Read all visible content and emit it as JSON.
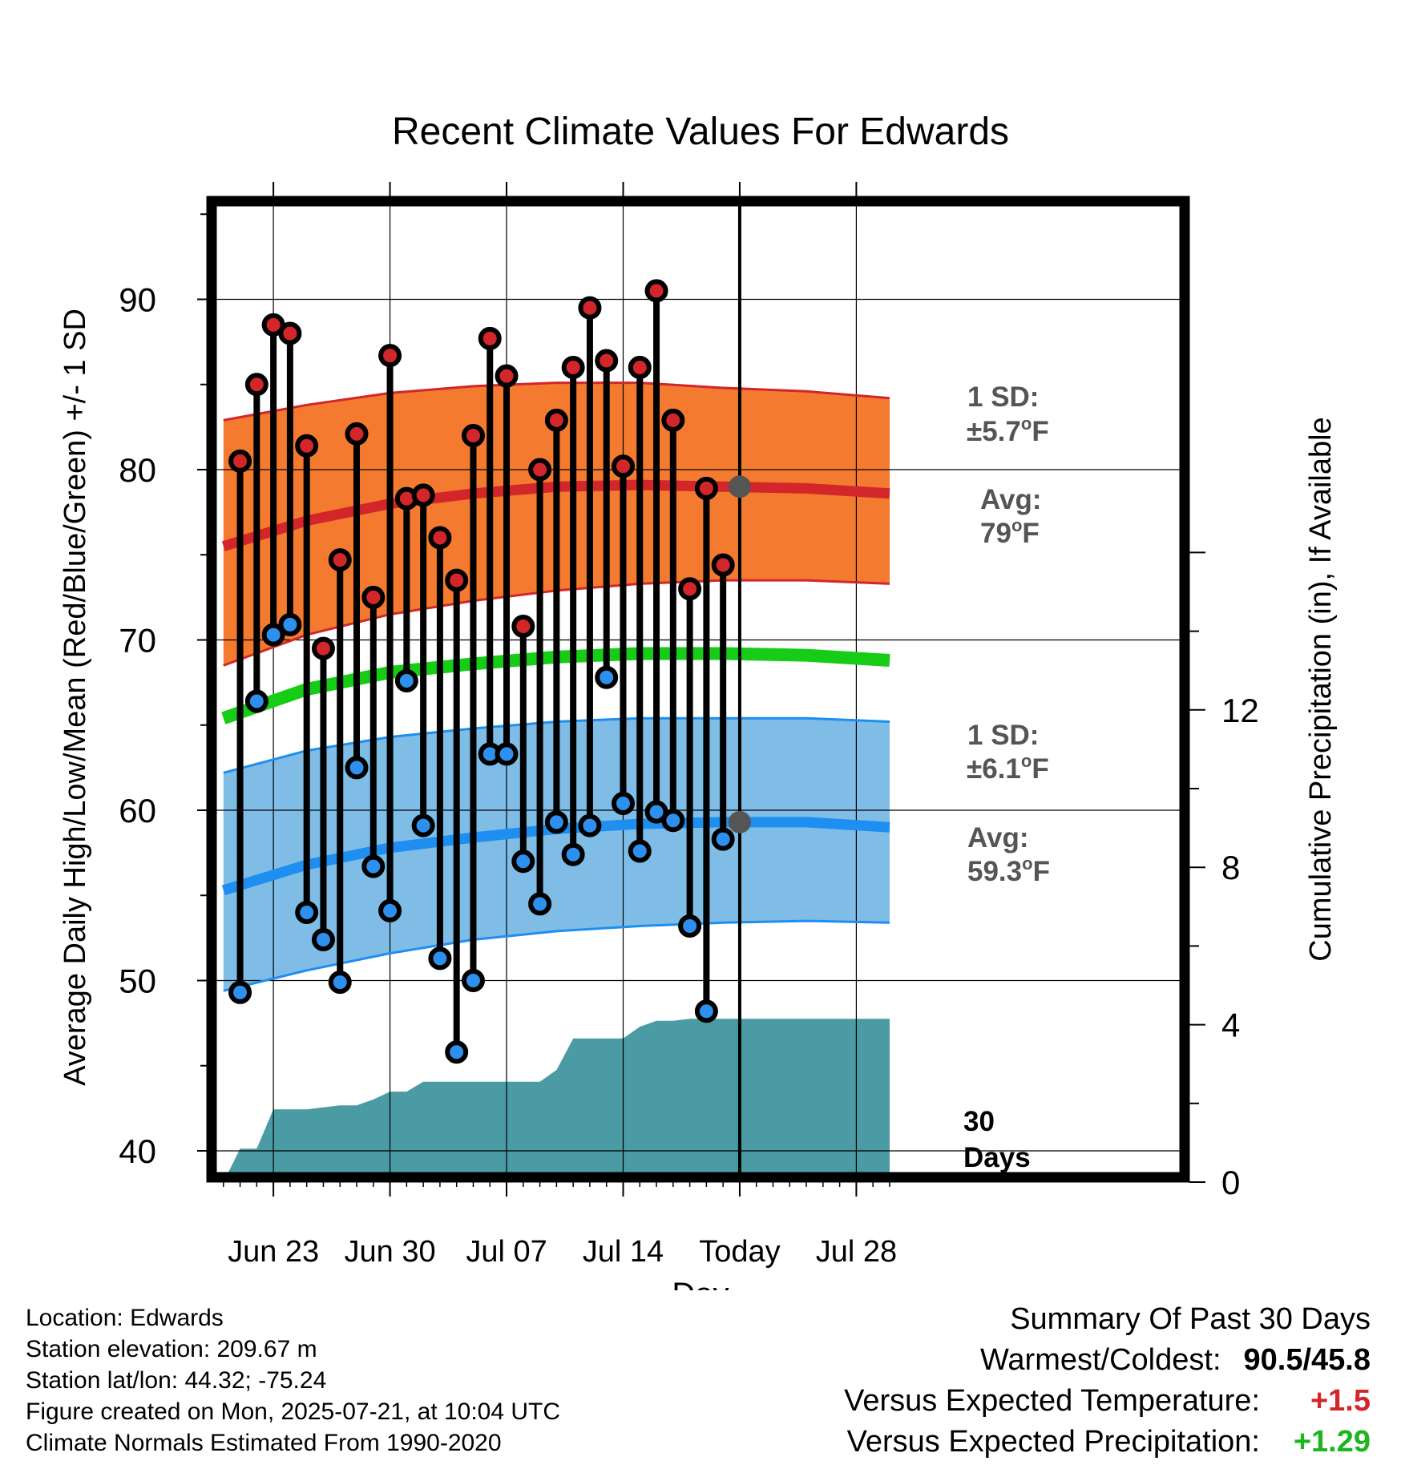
{
  "chart_data": {
    "type": "line",
    "title": "Recent Climate Values For Edwards",
    "xlabel": "Day",
    "ylabel_left": "Average Daily High/Low/Mean (Red/Blue/Green) +/- 1 SD",
    "ylabel_right": "Cumulative Precipitation (in), If Available",
    "ylim_left": [
      38.3,
      95.6
    ],
    "ylim_right": [
      0,
      16.5
    ],
    "xlim_day": [
      -1,
      58
    ],
    "x_ticks": [
      {
        "day": 3,
        "label": "Jun 23"
      },
      {
        "day": 10,
        "label": "Jun 30"
      },
      {
        "day": 17,
        "label": "Jul 07"
      },
      {
        "day": 24,
        "label": "Jul 14"
      },
      {
        "day": 31,
        "label": "Today"
      },
      {
        "day": 38,
        "label": "Jul 28"
      }
    ],
    "y_ticks_left": [
      40,
      50,
      60,
      70,
      80,
      90
    ],
    "y_ticks_right": [
      0,
      4,
      8,
      12
    ],
    "grid": true,
    "today_day": 31,
    "colors": {
      "high_band": "#F47A30",
      "high_mean": "#D3262A",
      "low_band": "#7FBDE6",
      "low_mean": "#1E8EF0",
      "mean": "#16CC16",
      "precip": "#4A9BA4",
      "high_marker": "#D3262A",
      "low_marker": "#2E90EE",
      "anno_gray": "#555555"
    },
    "normal_high_mean": [
      [
        0,
        75.5
      ],
      [
        5,
        77
      ],
      [
        10,
        78
      ],
      [
        15,
        78.6
      ],
      [
        20,
        79
      ],
      [
        25,
        79.1
      ],
      [
        30,
        79
      ],
      [
        35,
        78.9
      ],
      [
        40,
        78.6
      ]
    ],
    "normal_high_upper": [
      [
        0,
        82.9
      ],
      [
        5,
        83.8
      ],
      [
        10,
        84.5
      ],
      [
        15,
        84.9
      ],
      [
        20,
        85.1
      ],
      [
        25,
        85.1
      ],
      [
        30,
        84.8
      ],
      [
        35,
        84.6
      ],
      [
        40,
        84.2
      ]
    ],
    "normal_high_lower": [
      [
        0,
        68.5
      ],
      [
        5,
        70.3
      ],
      [
        10,
        71.5
      ],
      [
        15,
        72.3
      ],
      [
        20,
        72.9
      ],
      [
        25,
        73.3
      ],
      [
        30,
        73.5
      ],
      [
        35,
        73.5
      ],
      [
        40,
        73.3
      ]
    ],
    "normal_mean": [
      [
        0,
        65.4
      ],
      [
        5,
        67.1
      ],
      [
        10,
        68.1
      ],
      [
        15,
        68.6
      ],
      [
        20,
        69
      ],
      [
        25,
        69.2
      ],
      [
        30,
        69.2
      ],
      [
        35,
        69.1
      ],
      [
        40,
        68.8
      ]
    ],
    "normal_low_mean": [
      [
        0,
        55.3
      ],
      [
        5,
        56.8
      ],
      [
        10,
        57.8
      ],
      [
        15,
        58.4
      ],
      [
        20,
        58.9
      ],
      [
        25,
        59.2
      ],
      [
        30,
        59.3
      ],
      [
        35,
        59.3
      ],
      [
        40,
        59
      ]
    ],
    "normal_low_upper": [
      [
        0,
        62.2
      ],
      [
        5,
        63.5
      ],
      [
        10,
        64.3
      ],
      [
        15,
        64.8
      ],
      [
        20,
        65.2
      ],
      [
        25,
        65.4
      ],
      [
        30,
        65.4
      ],
      [
        35,
        65.4
      ],
      [
        40,
        65.2
      ]
    ],
    "normal_low_lower": [
      [
        0,
        49.4
      ],
      [
        5,
        50.6
      ],
      [
        10,
        51.6
      ],
      [
        15,
        52.4
      ],
      [
        20,
        52.9
      ],
      [
        25,
        53.2
      ],
      [
        30,
        53.4
      ],
      [
        35,
        53.5
      ],
      [
        40,
        53.4
      ]
    ],
    "daily": [
      {
        "day": 1,
        "high": 80.5,
        "low": 49.3
      },
      {
        "day": 2,
        "high": 85.0,
        "low": 66.4
      },
      {
        "day": 3,
        "high": 88.5,
        "low": 70.3
      },
      {
        "day": 4,
        "high": 88.0,
        "low": 70.9
      },
      {
        "day": 5,
        "high": 81.4,
        "low": 54.0
      },
      {
        "day": 6,
        "high": 69.5,
        "low": 52.4
      },
      {
        "day": 7,
        "high": 74.7,
        "low": 49.9
      },
      {
        "day": 8,
        "high": 82.1,
        "low": 62.5
      },
      {
        "day": 9,
        "high": 72.5,
        "low": 56.7
      },
      {
        "day": 10,
        "high": 86.7,
        "low": 54.1
      },
      {
        "day": 11,
        "high": 78.3,
        "low": 67.6
      },
      {
        "day": 12,
        "high": 78.5,
        "low": 59.1
      },
      {
        "day": 13,
        "high": 76.0,
        "low": 51.3
      },
      {
        "day": 14,
        "high": 73.5,
        "low": 45.8
      },
      {
        "day": 15,
        "high": 82.0,
        "low": 50.0
      },
      {
        "day": 16,
        "high": 87.7,
        "low": 63.3
      },
      {
        "day": 17,
        "high": 85.5,
        "low": 63.3
      },
      {
        "day": 18,
        "high": 70.8,
        "low": 57.0
      },
      {
        "day": 19,
        "high": 80.0,
        "low": 54.5
      },
      {
        "day": 20,
        "high": 82.9,
        "low": 59.3
      },
      {
        "day": 21,
        "high": 86.0,
        "low": 57.4
      },
      {
        "day": 22,
        "high": 89.5,
        "low": 59.1
      },
      {
        "day": 23,
        "high": 86.4,
        "low": 67.8
      },
      {
        "day": 24,
        "high": 80.2,
        "low": 60.4
      },
      {
        "day": 25,
        "high": 86.0,
        "low": 57.6
      },
      {
        "day": 26,
        "high": 90.5,
        "low": 59.9
      },
      {
        "day": 27,
        "high": 82.9,
        "low": 59.4
      },
      {
        "day": 28,
        "high": 73.0,
        "low": 53.2
      },
      {
        "day": 29,
        "high": 78.9,
        "low": 48.2
      },
      {
        "day": 30,
        "high": 74.4,
        "low": 58.3
      }
    ],
    "cumulative_precip": [
      [
        0,
        0
      ],
      [
        1,
        0.85
      ],
      [
        2,
        0.85
      ],
      [
        3,
        1.85
      ],
      [
        5,
        1.85
      ],
      [
        6,
        1.9
      ],
      [
        7,
        1.95
      ],
      [
        8,
        1.95
      ],
      [
        9,
        2.1
      ],
      [
        10,
        2.3
      ],
      [
        11,
        2.3
      ],
      [
        12,
        2.55
      ],
      [
        14,
        2.55
      ],
      [
        16,
        2.55
      ],
      [
        17,
        2.55
      ],
      [
        18,
        2.55
      ],
      [
        19,
        2.55
      ],
      [
        20,
        2.85
      ],
      [
        21,
        3.65
      ],
      [
        22,
        3.65
      ],
      [
        23,
        3.65
      ],
      [
        24,
        3.65
      ],
      [
        25,
        3.95
      ],
      [
        26,
        4.1
      ],
      [
        27,
        4.1
      ],
      [
        28,
        4.15
      ],
      [
        29,
        4.15
      ],
      [
        30,
        4.15
      ],
      [
        31,
        4.15
      ],
      [
        40,
        4.15
      ]
    ],
    "annotations": {
      "high_sd": [
        "1 SD:",
        "±5.7°F"
      ],
      "high_avg": [
        "Avg:",
        "79°F"
      ],
      "low_sd": [
        "1 SD:",
        "±6.1°F"
      ],
      "low_avg": [
        "Avg:",
        "59.3°F"
      ],
      "days": [
        "30",
        "Days"
      ]
    }
  },
  "footer": {
    "location": "Location: Edwards",
    "elevation": "Station elevation: 209.67 m",
    "latlon": "Station lat/lon: 44.32; -75.24",
    "created": "Figure created on Mon, 2025-07-21, at 10:04 UTC",
    "normals": "Climate Normals Estimated From 1990-2020"
  },
  "summary": {
    "title": "Summary Of Past 30 Days",
    "warmest_label": "Warmest/Coldest:",
    "warmest_value": "90.5/45.8",
    "temp_label": "Versus Expected Temperature:",
    "temp_value": "+1.5",
    "temp_color": "#D3262A",
    "precip_label": "Versus Expected Precipitation:",
    "precip_value": "+1.29",
    "precip_color": "#1DB51D"
  }
}
